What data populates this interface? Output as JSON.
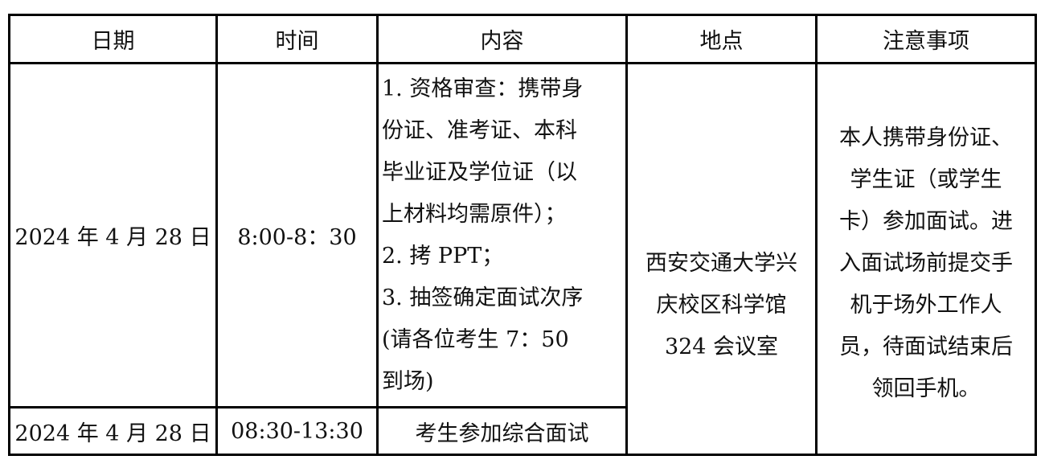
{
  "headers": [
    "日期",
    "时间",
    "内容",
    "地点",
    "注意事项"
  ],
  "rows": [
    {
      "date": "2024 年 4 月 28 日",
      "time": "8:00-8：30",
      "content_lines": [
        "1. 资格审查：携带身",
        "份证、准考证、本科",
        "毕业证及学位证（以",
        "上材料均需原件）；",
        "2. 拷 PPT；",
        "3. 抽签确定面试次序",
        "(请各位考生 7：50",
        "到场)"
      ]
    },
    {
      "date": "2024 年 4 月 28 日",
      "time": "08:30-13:30",
      "content": "考生参加综合面试"
    }
  ],
  "location_lines": [
    "西安交通大学兴",
    "庆校区科学馆",
    "324 会议室"
  ],
  "notes_lines": [
    "本人携带身份证、",
    "学生证（或学生",
    "卡）参加面试。进",
    "入面试场前提交手",
    "机于场外工作人",
    "员，待面试结束后",
    "领回手机。"
  ]
}
